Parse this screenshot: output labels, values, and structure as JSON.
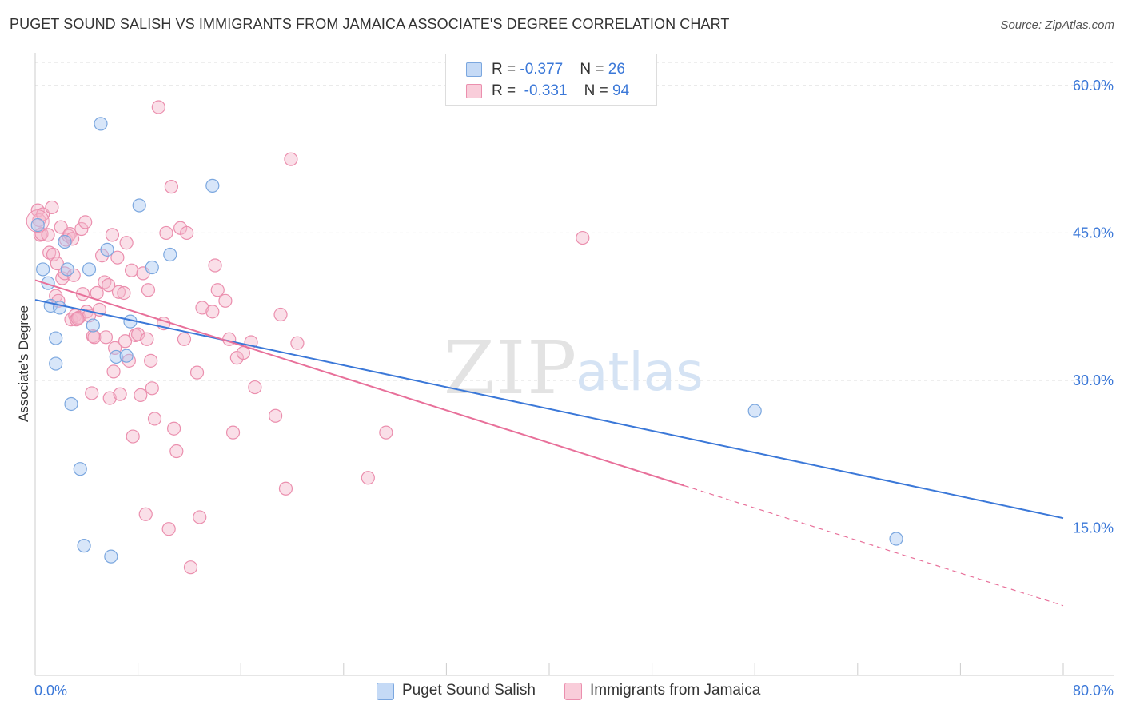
{
  "title": "PUGET SOUND SALISH VS IMMIGRANTS FROM JAMAICA ASSOCIATE'S DEGREE CORRELATION CHART",
  "source": "Source: ZipAtlas.com",
  "watermark": {
    "zip": "ZIP",
    "atlas": "atlas"
  },
  "legend_top": {
    "rows": [
      {
        "r_label": "R = ",
        "r_value": "-0.377",
        "n_label": "N = ",
        "n_value": "26"
      },
      {
        "r_label": "R = ",
        "r_value": "-0.331",
        "n_label": "N = ",
        "n_value": "94"
      }
    ]
  },
  "legend_bottom": [
    "Puget Sound Salish",
    "Immigrants from Jamaica"
  ],
  "colors": {
    "blue_fill": "#a9c8f2",
    "blue_stroke": "#7ba7df",
    "blue_line": "#3b78d8",
    "pink_fill": "#f5b7cb",
    "pink_stroke": "#eb8fae",
    "pink_line": "#e8709a",
    "grid": "#dddddd",
    "axis_text": "#3b78d8"
  },
  "chart_data": {
    "type": "scatter",
    "title": "PUGET SOUND SALISH VS IMMIGRANTS FROM JAMAICA ASSOCIATE'S DEGREE CORRELATION CHART",
    "xlabel": "",
    "ylabel": "Associate's Degree",
    "xlim": [
      0,
      80
    ],
    "ylim": [
      0,
      63
    ],
    "x_tick_labels": [
      "0.0%",
      "80.0%"
    ],
    "y_ticks": [
      15,
      30,
      45,
      60
    ],
    "y_tick_labels": [
      "15.0%",
      "30.0%",
      "45.0%",
      "60.0%"
    ],
    "grid": true,
    "legend_placement": "top-center",
    "series": [
      {
        "name": "Puget Sound Salish",
        "color": "#a9c8f2",
        "trend": {
          "x": [
            0,
            80
          ],
          "y": [
            38.2,
            16.0
          ],
          "dashed_from": null
        },
        "points": [
          {
            "x": 0.2,
            "y": 45.8
          },
          {
            "x": 0.6,
            "y": 41.3
          },
          {
            "x": 1.0,
            "y": 39.9
          },
          {
            "x": 1.2,
            "y": 37.6
          },
          {
            "x": 1.6,
            "y": 34.3
          },
          {
            "x": 1.9,
            "y": 37.4
          },
          {
            "x": 1.6,
            "y": 31.7
          },
          {
            "x": 2.3,
            "y": 44.1
          },
          {
            "x": 2.5,
            "y": 41.3
          },
          {
            "x": 2.8,
            "y": 27.6
          },
          {
            "x": 3.5,
            "y": 21.0
          },
          {
            "x": 4.2,
            "y": 41.3
          },
          {
            "x": 4.5,
            "y": 35.6
          },
          {
            "x": 5.1,
            "y": 56.1
          },
          {
            "x": 5.6,
            "y": 43.3
          },
          {
            "x": 5.9,
            "y": 12.1
          },
          {
            "x": 6.3,
            "y": 32.4
          },
          {
            "x": 7.1,
            "y": 32.5
          },
          {
            "x": 7.4,
            "y": 36.0
          },
          {
            "x": 8.1,
            "y": 47.8
          },
          {
            "x": 9.1,
            "y": 41.5
          },
          {
            "x": 10.5,
            "y": 42.8
          },
          {
            "x": 13.8,
            "y": 49.8
          },
          {
            "x": 56.0,
            "y": 26.9
          },
          {
            "x": 67.0,
            "y": 13.9
          },
          {
            "x": 3.8,
            "y": 13.2
          }
        ]
      },
      {
        "name": "Immigrants from Jamaica",
        "color": "#f5b7cb",
        "trend": {
          "x": [
            0,
            80
          ],
          "y": [
            40.2,
            7.1
          ],
          "dashed_from": 50.5
        },
        "points": [
          {
            "x": 0.2,
            "y": 47.3
          },
          {
            "x": 0.3,
            "y": 46.3
          },
          {
            "x": 0.4,
            "y": 44.8
          },
          {
            "x": 0.5,
            "y": 44.9
          },
          {
            "x": 0.6,
            "y": 46.9
          },
          {
            "x": 1.0,
            "y": 44.8
          },
          {
            "x": 1.1,
            "y": 43.0
          },
          {
            "x": 1.3,
            "y": 47.6
          },
          {
            "x": 1.4,
            "y": 42.8
          },
          {
            "x": 1.6,
            "y": 38.6
          },
          {
            "x": 1.7,
            "y": 41.9
          },
          {
            "x": 1.8,
            "y": 38.1
          },
          {
            "x": 2.0,
            "y": 45.6
          },
          {
            "x": 2.1,
            "y": 40.4
          },
          {
            "x": 2.3,
            "y": 40.9
          },
          {
            "x": 2.4,
            "y": 44.3
          },
          {
            "x": 2.6,
            "y": 44.7
          },
          {
            "x": 2.7,
            "y": 44.9
          },
          {
            "x": 2.8,
            "y": 36.2
          },
          {
            "x": 3.0,
            "y": 40.7
          },
          {
            "x": 3.1,
            "y": 36.6
          },
          {
            "x": 3.2,
            "y": 36.2
          },
          {
            "x": 3.4,
            "y": 36.4
          },
          {
            "x": 3.6,
            "y": 45.4
          },
          {
            "x": 3.7,
            "y": 38.8
          },
          {
            "x": 3.9,
            "y": 46.1
          },
          {
            "x": 4.0,
            "y": 37.0
          },
          {
            "x": 4.2,
            "y": 36.6
          },
          {
            "x": 4.4,
            "y": 28.7
          },
          {
            "x": 4.5,
            "y": 34.5
          },
          {
            "x": 4.6,
            "y": 34.4
          },
          {
            "x": 4.8,
            "y": 38.9
          },
          {
            "x": 5.0,
            "y": 37.2
          },
          {
            "x": 5.2,
            "y": 42.7
          },
          {
            "x": 5.4,
            "y": 40.0
          },
          {
            "x": 5.5,
            "y": 34.4
          },
          {
            "x": 5.7,
            "y": 39.7
          },
          {
            "x": 5.8,
            "y": 28.2
          },
          {
            "x": 6.0,
            "y": 44.8
          },
          {
            "x": 6.1,
            "y": 30.9
          },
          {
            "x": 6.2,
            "y": 33.3
          },
          {
            "x": 6.4,
            "y": 42.5
          },
          {
            "x": 6.5,
            "y": 39.0
          },
          {
            "x": 6.6,
            "y": 28.6
          },
          {
            "x": 6.9,
            "y": 38.9
          },
          {
            "x": 7.1,
            "y": 44.0
          },
          {
            "x": 7.0,
            "y": 34.0
          },
          {
            "x": 7.3,
            "y": 32.0
          },
          {
            "x": 7.5,
            "y": 41.2
          },
          {
            "x": 7.6,
            "y": 24.3
          },
          {
            "x": 7.8,
            "y": 34.6
          },
          {
            "x": 8.0,
            "y": 34.7
          },
          {
            "x": 8.2,
            "y": 28.5
          },
          {
            "x": 8.4,
            "y": 40.9
          },
          {
            "x": 8.6,
            "y": 16.4
          },
          {
            "x": 8.7,
            "y": 34.2
          },
          {
            "x": 8.8,
            "y": 39.2
          },
          {
            "x": 9.0,
            "y": 32.0
          },
          {
            "x": 9.1,
            "y": 29.2
          },
          {
            "x": 9.3,
            "y": 26.1
          },
          {
            "x": 9.6,
            "y": 57.8
          },
          {
            "x": 10.0,
            "y": 35.8
          },
          {
            "x": 10.2,
            "y": 45.0
          },
          {
            "x": 10.4,
            "y": 14.9
          },
          {
            "x": 10.6,
            "y": 49.7
          },
          {
            "x": 10.8,
            "y": 25.1
          },
          {
            "x": 11.0,
            "y": 22.8
          },
          {
            "x": 11.3,
            "y": 45.5
          },
          {
            "x": 11.6,
            "y": 34.2
          },
          {
            "x": 11.8,
            "y": 45.0
          },
          {
            "x": 12.1,
            "y": 11.0
          },
          {
            "x": 12.6,
            "y": 30.8
          },
          {
            "x": 12.8,
            "y": 16.1
          },
          {
            "x": 13.0,
            "y": 37.4
          },
          {
            "x": 13.8,
            "y": 37.0
          },
          {
            "x": 14.0,
            "y": 41.7
          },
          {
            "x": 14.2,
            "y": 39.2
          },
          {
            "x": 14.8,
            "y": 38.1
          },
          {
            "x": 15.1,
            "y": 34.2
          },
          {
            "x": 15.4,
            "y": 24.7
          },
          {
            "x": 15.7,
            "y": 32.3
          },
          {
            "x": 16.2,
            "y": 32.8
          },
          {
            "x": 16.8,
            "y": 33.9
          },
          {
            "x": 17.1,
            "y": 29.3
          },
          {
            "x": 18.7,
            "y": 26.4
          },
          {
            "x": 19.1,
            "y": 36.7
          },
          {
            "x": 19.5,
            "y": 19.0
          },
          {
            "x": 19.9,
            "y": 52.5
          },
          {
            "x": 20.4,
            "y": 33.8
          },
          {
            "x": 25.9,
            "y": 20.1
          },
          {
            "x": 27.3,
            "y": 24.7
          },
          {
            "x": 42.6,
            "y": 44.5
          },
          {
            "x": 2.9,
            "y": 44.4
          },
          {
            "x": 3.3,
            "y": 36.3
          }
        ]
      }
    ]
  }
}
